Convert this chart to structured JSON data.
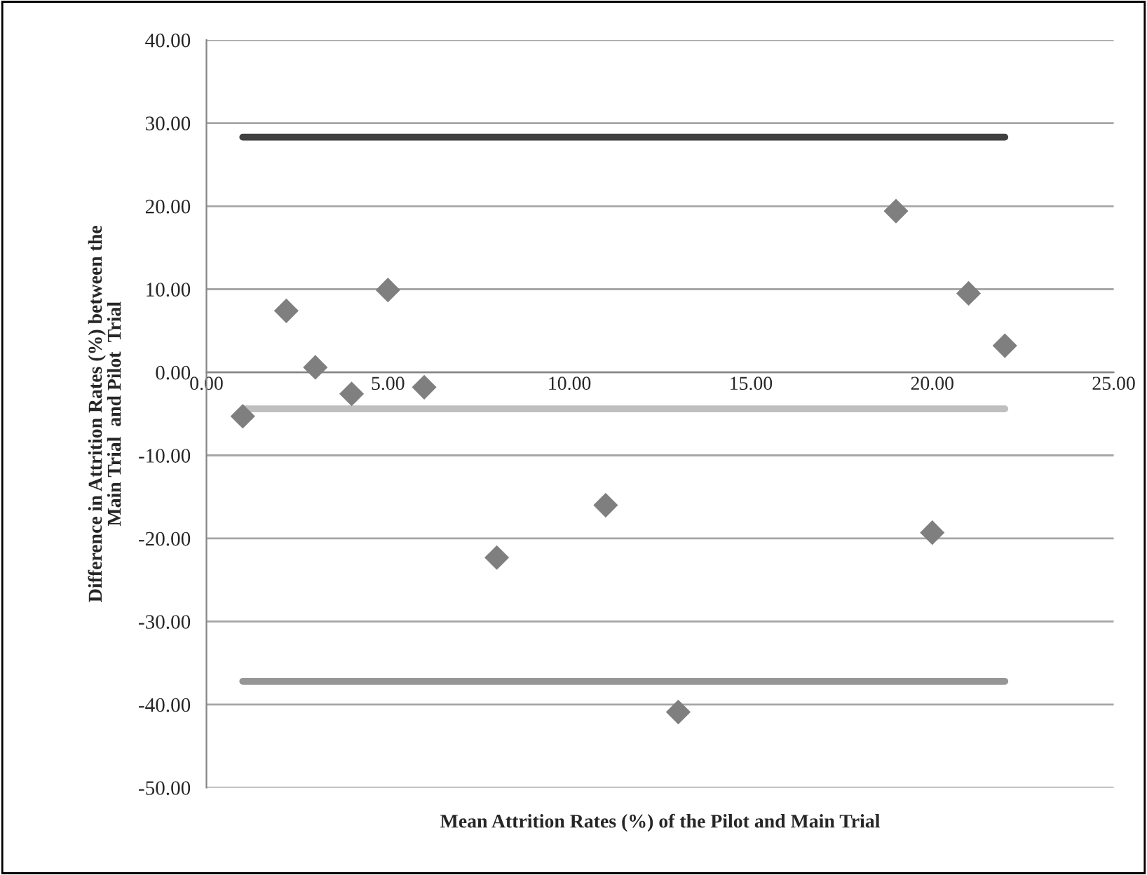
{
  "chart_data": {
    "type": "scatter",
    "xlabel": "Mean Attrition Rates (%) of the Pilot and Main Trial",
    "ylabel": "Difference in Attrition Rates (%) between the\nMain Trial  and Pilot  Trial",
    "series": [
      {
        "color": "#7f7f7f",
        "marker": "diamond",
        "x": [
          1,
          2.2,
          3,
          4,
          5,
          6,
          8,
          11,
          13,
          19,
          20,
          21,
          22
        ],
        "values": [
          -5.3,
          7.4,
          0.6,
          -2.6,
          9.9,
          -1.8,
          -22.3,
          -16.0,
          -40.9,
          19.4,
          -19.3,
          9.5,
          3.2
        ]
      },
      {
        "type": "line",
        "color": "#404040",
        "x": [
          1,
          22
        ],
        "values": [
          28.3,
          28.3
        ]
      },
      {
        "type": "line",
        "color": "#bfbfbf",
        "x": [
          1,
          22
        ],
        "values": [
          -4.4,
          -4.4
        ]
      },
      {
        "type": "line",
        "color": "#969696",
        "x": [
          1,
          22
        ],
        "values": [
          -37.2,
          -37.2
        ]
      }
    ],
    "xlim": [
      0,
      25
    ],
    "xticks": [
      {
        "value": 0,
        "label": "0.00"
      },
      {
        "value": 5,
        "label": "5.00"
      },
      {
        "value": 10,
        "label": "10.00"
      },
      {
        "value": 15,
        "label": "15.00"
      },
      {
        "value": 20,
        "label": "20.00"
      },
      {
        "value": 25,
        "label": "25.00"
      }
    ],
    "ylim": [
      -50,
      40
    ],
    "yticks": [
      {
        "value": -50,
        "label": "-50.00"
      },
      {
        "value": -40,
        "label": "-40.00"
      },
      {
        "value": -30,
        "label": "-30.00"
      },
      {
        "value": -20,
        "label": "-20.00"
      },
      {
        "value": -10,
        "label": "-10.00"
      },
      {
        "value": 0,
        "label": "0.00"
      },
      {
        "value": 10,
        "label": "10.00"
      },
      {
        "value": 20,
        "label": "20.00"
      },
      {
        "value": 30,
        "label": "30.00"
      },
      {
        "value": 40,
        "label": "40.00"
      }
    ],
    "grid": "y",
    "legend": false
  }
}
